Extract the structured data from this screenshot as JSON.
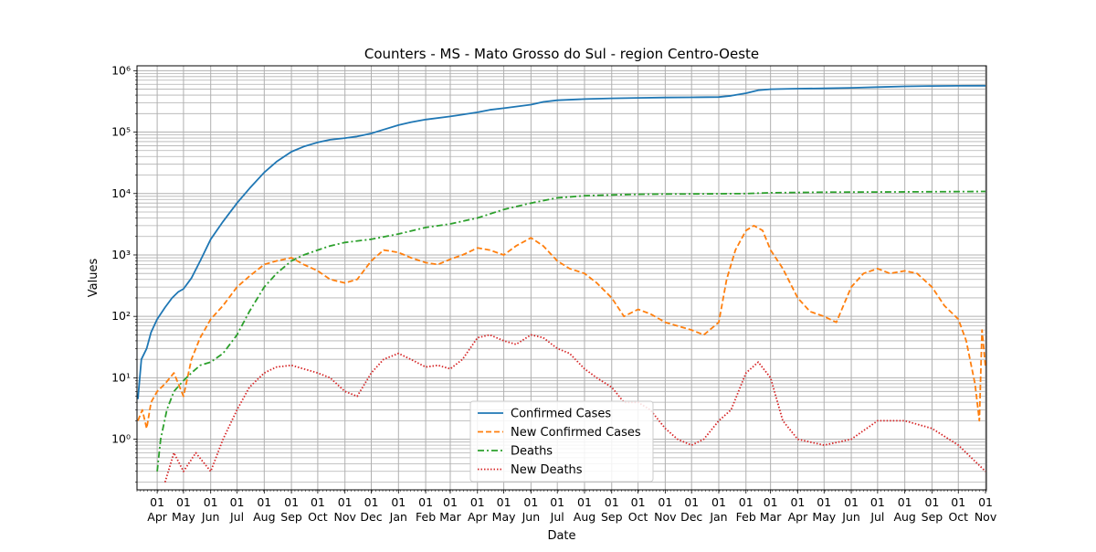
{
  "chart_data": {
    "type": "line",
    "title": "Counters - MS - Mato Grosso do Sul - region Centro-Oeste",
    "xlabel": "Date",
    "ylabel": "Values",
    "y_scale": "log",
    "ylim": [
      0.15,
      1200000
    ],
    "xlim": [
      "2020-03-09",
      "2022-11-02"
    ],
    "grid": true,
    "legend_position": "lower-center",
    "y_ticks": [
      {
        "value": 1,
        "label": "10⁰"
      },
      {
        "value": 10,
        "label": "10¹"
      },
      {
        "value": 100,
        "label": "10²"
      },
      {
        "value": 1000,
        "label": "10³"
      },
      {
        "value": 10000,
        "label": "10⁴"
      },
      {
        "value": 100000,
        "label": "10⁵"
      },
      {
        "value": 1000000,
        "label": "10⁶"
      }
    ],
    "x_ticks": [
      {
        "date": "2020-04-01",
        "day": "01",
        "month": "Apr"
      },
      {
        "date": "2020-05-01",
        "day": "01",
        "month": "May"
      },
      {
        "date": "2020-06-01",
        "day": "01",
        "month": "Jun"
      },
      {
        "date": "2020-07-01",
        "day": "01",
        "month": "Jul"
      },
      {
        "date": "2020-08-01",
        "day": "01",
        "month": "Aug"
      },
      {
        "date": "2020-09-01",
        "day": "01",
        "month": "Sep"
      },
      {
        "date": "2020-10-01",
        "day": "01",
        "month": "Oct"
      },
      {
        "date": "2020-11-01",
        "day": "01",
        "month": "Nov"
      },
      {
        "date": "2020-12-01",
        "day": "01",
        "month": "Dec"
      },
      {
        "date": "2021-01-01",
        "day": "01",
        "month": "Jan"
      },
      {
        "date": "2021-02-01",
        "day": "01",
        "month": "Feb"
      },
      {
        "date": "2021-03-01",
        "day": "01",
        "month": "Mar"
      },
      {
        "date": "2021-04-01",
        "day": "01",
        "month": "Apr"
      },
      {
        "date": "2021-05-01",
        "day": "01",
        "month": "May"
      },
      {
        "date": "2021-06-01",
        "day": "01",
        "month": "Jun"
      },
      {
        "date": "2021-07-01",
        "day": "01",
        "month": "Jul"
      },
      {
        "date": "2021-08-01",
        "day": "01",
        "month": "Aug"
      },
      {
        "date": "2021-09-01",
        "day": "01",
        "month": "Sep"
      },
      {
        "date": "2021-10-01",
        "day": "01",
        "month": "Oct"
      },
      {
        "date": "2021-11-01",
        "day": "01",
        "month": "Nov"
      },
      {
        "date": "2021-12-01",
        "day": "01",
        "month": "Dec"
      },
      {
        "date": "2022-01-01",
        "day": "01",
        "month": "Jan"
      },
      {
        "date": "2022-02-01",
        "day": "01",
        "month": "Feb"
      },
      {
        "date": "2022-03-01",
        "day": "01",
        "month": "Mar"
      },
      {
        "date": "2022-04-01",
        "day": "01",
        "month": "Apr"
      },
      {
        "date": "2022-05-01",
        "day": "01",
        "month": "May"
      },
      {
        "date": "2022-06-01",
        "day": "01",
        "month": "Jun"
      },
      {
        "date": "2022-07-01",
        "day": "01",
        "month": "Jul"
      },
      {
        "date": "2022-08-01",
        "day": "01",
        "month": "Aug"
      },
      {
        "date": "2022-09-01",
        "day": "01",
        "month": "Sep"
      },
      {
        "date": "2022-10-01",
        "day": "01",
        "month": "Oct"
      },
      {
        "date": "2022-11-01",
        "day": "01",
        "month": "Nov"
      }
    ],
    "series": [
      {
        "name": "Confirmed Cases",
        "color": "#1f77b4",
        "style": "solid",
        "points": [
          [
            "2020-03-10",
            4.5
          ],
          [
            "2020-03-14",
            20
          ],
          [
            "2020-03-20",
            30
          ],
          [
            "2020-03-25",
            55
          ],
          [
            "2020-04-01",
            90
          ],
          [
            "2020-04-10",
            140
          ],
          [
            "2020-04-18",
            200
          ],
          [
            "2020-04-25",
            250
          ],
          [
            "2020-05-01",
            280
          ],
          [
            "2020-05-10",
            420
          ],
          [
            "2020-05-20",
            800
          ],
          [
            "2020-06-01",
            1800
          ],
          [
            "2020-06-15",
            3500
          ],
          [
            "2020-07-01",
            7000
          ],
          [
            "2020-07-15",
            12000
          ],
          [
            "2020-08-01",
            22000
          ],
          [
            "2020-08-15",
            33000
          ],
          [
            "2020-09-01",
            48000
          ],
          [
            "2020-09-15",
            58000
          ],
          [
            "2020-10-01",
            68000
          ],
          [
            "2020-10-15",
            75000
          ],
          [
            "2020-11-01",
            80000
          ],
          [
            "2020-11-15",
            85000
          ],
          [
            "2020-12-01",
            95000
          ],
          [
            "2020-12-15",
            110000
          ],
          [
            "2021-01-01",
            130000
          ],
          [
            "2021-01-15",
            145000
          ],
          [
            "2021-02-01",
            160000
          ],
          [
            "2021-03-01",
            180000
          ],
          [
            "2021-04-01",
            210000
          ],
          [
            "2021-04-15",
            230000
          ],
          [
            "2021-05-01",
            245000
          ],
          [
            "2021-06-01",
            280000
          ],
          [
            "2021-06-15",
            310000
          ],
          [
            "2021-07-01",
            330000
          ],
          [
            "2021-08-01",
            345000
          ],
          [
            "2021-09-01",
            355000
          ],
          [
            "2021-10-01",
            360000
          ],
          [
            "2021-11-01",
            365000
          ],
          [
            "2021-12-01",
            368000
          ],
          [
            "2022-01-01",
            372000
          ],
          [
            "2022-01-15",
            390000
          ],
          [
            "2022-02-01",
            430000
          ],
          [
            "2022-02-15",
            480000
          ],
          [
            "2022-03-01",
            500000
          ],
          [
            "2022-04-01",
            510000
          ],
          [
            "2022-05-01",
            515000
          ],
          [
            "2022-06-01",
            525000
          ],
          [
            "2022-07-01",
            540000
          ],
          [
            "2022-08-01",
            555000
          ],
          [
            "2022-09-01",
            562000
          ],
          [
            "2022-10-01",
            566000
          ],
          [
            "2022-11-01",
            568000
          ]
        ]
      },
      {
        "name": "New Confirmed Cases",
        "color": "#ff7f0e",
        "style": "dashed",
        "points": [
          [
            "2020-03-10",
            2
          ],
          [
            "2020-03-15",
            3
          ],
          [
            "2020-03-20",
            1.5
          ],
          [
            "2020-03-25",
            4
          ],
          [
            "2020-04-01",
            6
          ],
          [
            "2020-04-10",
            8
          ],
          [
            "2020-04-20",
            12
          ],
          [
            "2020-05-01",
            5
          ],
          [
            "2020-05-10",
            20
          ],
          [
            "2020-05-20",
            45
          ],
          [
            "2020-06-01",
            90
          ],
          [
            "2020-06-15",
            150
          ],
          [
            "2020-07-01",
            300
          ],
          [
            "2020-07-15",
            450
          ],
          [
            "2020-08-01",
            700
          ],
          [
            "2020-08-15",
            800
          ],
          [
            "2020-09-01",
            900
          ],
          [
            "2020-09-15",
            700
          ],
          [
            "2020-10-01",
            550
          ],
          [
            "2020-10-15",
            400
          ],
          [
            "2020-11-01",
            350
          ],
          [
            "2020-11-15",
            400
          ],
          [
            "2020-12-01",
            800
          ],
          [
            "2020-12-15",
            1200
          ],
          [
            "2021-01-01",
            1100
          ],
          [
            "2021-01-15",
            900
          ],
          [
            "2021-02-01",
            750
          ],
          [
            "2021-02-15",
            700
          ],
          [
            "2021-03-01",
            850
          ],
          [
            "2021-03-15",
            1000
          ],
          [
            "2021-04-01",
            1300
          ],
          [
            "2021-04-15",
            1200
          ],
          [
            "2021-05-01",
            1000
          ],
          [
            "2021-05-15",
            1400
          ],
          [
            "2021-06-01",
            1900
          ],
          [
            "2021-06-15",
            1400
          ],
          [
            "2021-07-01",
            800
          ],
          [
            "2021-07-15",
            600
          ],
          [
            "2021-08-01",
            500
          ],
          [
            "2021-08-15",
            350
          ],
          [
            "2021-09-01",
            200
          ],
          [
            "2021-09-15",
            100
          ],
          [
            "2021-10-01",
            130
          ],
          [
            "2021-10-15",
            110
          ],
          [
            "2021-11-01",
            80
          ],
          [
            "2021-11-15",
            70
          ],
          [
            "2021-12-01",
            60
          ],
          [
            "2021-12-15",
            50
          ],
          [
            "2022-01-01",
            80
          ],
          [
            "2022-01-10",
            400
          ],
          [
            "2022-01-20",
            1200
          ],
          [
            "2022-02-01",
            2500
          ],
          [
            "2022-02-10",
            3000
          ],
          [
            "2022-02-20",
            2500
          ],
          [
            "2022-03-01",
            1200
          ],
          [
            "2022-03-15",
            600
          ],
          [
            "2022-04-01",
            200
          ],
          [
            "2022-04-15",
            120
          ],
          [
            "2022-05-01",
            100
          ],
          [
            "2022-05-15",
            80
          ],
          [
            "2022-06-01",
            300
          ],
          [
            "2022-06-15",
            500
          ],
          [
            "2022-07-01",
            600
          ],
          [
            "2022-07-15",
            500
          ],
          [
            "2022-08-01",
            550
          ],
          [
            "2022-08-15",
            500
          ],
          [
            "2022-09-01",
            300
          ],
          [
            "2022-09-15",
            150
          ],
          [
            "2022-10-01",
            90
          ],
          [
            "2022-10-10",
            40
          ],
          [
            "2022-10-20",
            8
          ],
          [
            "2022-10-25",
            2
          ],
          [
            "2022-10-28",
            60
          ],
          [
            "2022-11-01",
            15
          ]
        ]
      },
      {
        "name": "Deaths",
        "color": "#2ca02c",
        "style": "dashdot",
        "points": [
          [
            "2020-04-01",
            0.3
          ],
          [
            "2020-04-05",
            1
          ],
          [
            "2020-04-12",
            3
          ],
          [
            "2020-04-20",
            6
          ],
          [
            "2020-05-01",
            9
          ],
          [
            "2020-05-10",
            12
          ],
          [
            "2020-05-20",
            16
          ],
          [
            "2020-06-01",
            18
          ],
          [
            "2020-06-15",
            25
          ],
          [
            "2020-07-01",
            50
          ],
          [
            "2020-07-15",
            120
          ],
          [
            "2020-08-01",
            300
          ],
          [
            "2020-08-15",
            500
          ],
          [
            "2020-09-01",
            800
          ],
          [
            "2020-09-15",
            1000
          ],
          [
            "2020-10-01",
            1200
          ],
          [
            "2020-10-15",
            1400
          ],
          [
            "2020-11-01",
            1600
          ],
          [
            "2020-12-01",
            1800
          ],
          [
            "2021-01-01",
            2200
          ],
          [
            "2021-02-01",
            2800
          ],
          [
            "2021-03-01",
            3200
          ],
          [
            "2021-04-01",
            4000
          ],
          [
            "2021-05-01",
            5500
          ],
          [
            "2021-06-01",
            7000
          ],
          [
            "2021-07-01",
            8500
          ],
          [
            "2021-08-01",
            9200
          ],
          [
            "2021-09-01",
            9500
          ],
          [
            "2021-10-01",
            9700
          ],
          [
            "2021-11-01",
            9800
          ],
          [
            "2021-12-01",
            9850
          ],
          [
            "2022-01-01",
            9900
          ],
          [
            "2022-02-01",
            10000
          ],
          [
            "2022-03-01",
            10300
          ],
          [
            "2022-05-01",
            10500
          ],
          [
            "2022-07-01",
            10600
          ],
          [
            "2022-09-01",
            10700
          ],
          [
            "2022-11-01",
            10800
          ]
        ]
      },
      {
        "name": "New Deaths",
        "color": "#d62728",
        "style": "dotted",
        "points": [
          [
            "2020-04-10",
            0.2
          ],
          [
            "2020-04-20",
            0.6
          ],
          [
            "2020-05-01",
            0.3
          ],
          [
            "2020-05-15",
            0.6
          ],
          [
            "2020-06-01",
            0.3
          ],
          [
            "2020-06-15",
            1
          ],
          [
            "2020-07-01",
            3
          ],
          [
            "2020-07-15",
            7
          ],
          [
            "2020-08-01",
            12
          ],
          [
            "2020-08-15",
            15
          ],
          [
            "2020-09-01",
            16
          ],
          [
            "2020-09-15",
            14
          ],
          [
            "2020-10-01",
            12
          ],
          [
            "2020-10-15",
            10
          ],
          [
            "2020-11-01",
            6
          ],
          [
            "2020-11-15",
            5
          ],
          [
            "2020-12-01",
            12
          ],
          [
            "2020-12-15",
            20
          ],
          [
            "2021-01-01",
            25
          ],
          [
            "2021-01-15",
            20
          ],
          [
            "2021-02-01",
            15
          ],
          [
            "2021-02-15",
            16
          ],
          [
            "2021-03-01",
            14
          ],
          [
            "2021-03-15",
            20
          ],
          [
            "2021-04-01",
            45
          ],
          [
            "2021-04-15",
            50
          ],
          [
            "2021-05-01",
            40
          ],
          [
            "2021-05-15",
            35
          ],
          [
            "2021-06-01",
            50
          ],
          [
            "2021-06-15",
            45
          ],
          [
            "2021-07-01",
            30
          ],
          [
            "2021-07-15",
            25
          ],
          [
            "2021-08-01",
            14
          ],
          [
            "2021-08-15",
            10
          ],
          [
            "2021-09-01",
            7
          ],
          [
            "2021-09-15",
            4
          ],
          [
            "2021-10-01",
            4
          ],
          [
            "2021-10-15",
            3
          ],
          [
            "2021-11-01",
            1.5
          ],
          [
            "2021-11-15",
            1
          ],
          [
            "2021-12-01",
            0.8
          ],
          [
            "2021-12-15",
            1
          ],
          [
            "2022-01-01",
            2
          ],
          [
            "2022-01-15",
            3
          ],
          [
            "2022-02-01",
            12
          ],
          [
            "2022-02-15",
            18
          ],
          [
            "2022-03-01",
            10
          ],
          [
            "2022-03-15",
            2
          ],
          [
            "2022-04-01",
            1
          ],
          [
            "2022-05-01",
            0.8
          ],
          [
            "2022-06-01",
            1
          ],
          [
            "2022-07-01",
            2
          ],
          [
            "2022-08-01",
            2
          ],
          [
            "2022-09-01",
            1.5
          ],
          [
            "2022-10-01",
            0.8
          ],
          [
            "2022-11-01",
            0.3
          ]
        ]
      }
    ]
  }
}
